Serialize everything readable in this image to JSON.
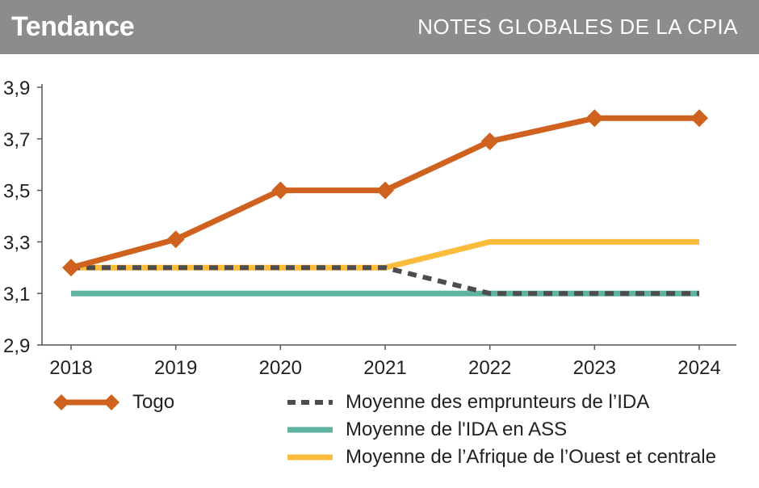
{
  "header": {
    "left": "Tendance",
    "right": "NOTES GLOBALES DE LA CPIA",
    "background": "#8c8c8e"
  },
  "chart_data": {
    "type": "line",
    "title": "NOTES GLOBALES DE LA CPIA",
    "x": [
      "2018",
      "2019",
      "2020",
      "2021",
      "2022",
      "2023",
      "2024"
    ],
    "ylim": [
      2.9,
      3.9
    ],
    "yticks": [
      2.9,
      3.1,
      3.3,
      3.5,
      3.7,
      3.9
    ],
    "ytick_labels": [
      "2,9",
      "3,1",
      "3,3",
      "3,5",
      "3,7",
      "3,9"
    ],
    "grid": false,
    "legend": "bottom",
    "series": [
      {
        "name": "Moyenne de l'IDA en ASS",
        "values": [
          3.1,
          3.1,
          3.1,
          3.1,
          3.1,
          3.1,
          3.1
        ],
        "color": "#5fb3a1",
        "style": "solid",
        "marker": "none"
      },
      {
        "name": "Moyenne de l’Afrique de l’Ouest et centrale",
        "values": [
          3.2,
          3.2,
          3.2,
          3.2,
          3.3,
          3.3,
          3.3
        ],
        "color": "#fbbc3c",
        "style": "solid",
        "marker": "none"
      },
      {
        "name": "Moyenne des emprunteurs de l’IDA",
        "values": [
          3.2,
          3.2,
          3.2,
          3.2,
          3.1,
          3.1,
          3.1
        ],
        "color": "#4d4d4f",
        "style": "dashed",
        "marker": "none"
      },
      {
        "name": "Togo",
        "values": [
          3.2,
          3.31,
          3.5,
          3.5,
          3.69,
          3.78,
          3.78
        ],
        "color": "#d0621f",
        "style": "solid",
        "marker": "diamond"
      }
    ]
  },
  "legend": {
    "togo": "Togo",
    "ida_borrowers": "Moyenne des emprunteurs de l’IDA",
    "ida_ssa": "Moyenne de l'IDA en ASS",
    "west_central": "Moyenne de l’Afrique de l’Ouest et centrale"
  }
}
